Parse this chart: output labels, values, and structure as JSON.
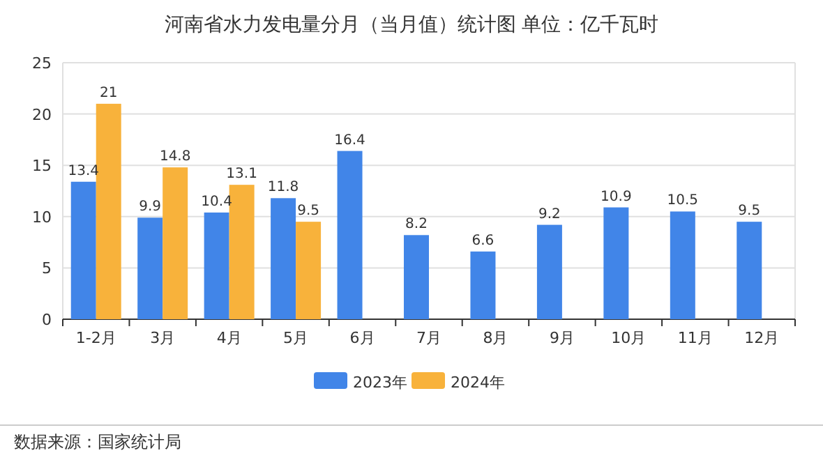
{
  "chart_data": {
    "type": "bar",
    "title": "河南省水力发电量分月（当月值）统计图 单位：亿千瓦时",
    "categories": [
      "1-2月",
      "3月",
      "4月",
      "5月",
      "6月",
      "7月",
      "8月",
      "9月",
      "10月",
      "11月",
      "12月"
    ],
    "series": [
      {
        "name": "2023年",
        "color": "#4185e8",
        "values": [
          13.4,
          9.9,
          10.4,
          11.8,
          16.4,
          8.2,
          6.6,
          9.2,
          10.9,
          10.5,
          9.5
        ]
      },
      {
        "name": "2024年",
        "color": "#f8b23b",
        "values": [
          21,
          14.8,
          13.1,
          9.5,
          null,
          null,
          null,
          null,
          null,
          null,
          null
        ]
      }
    ],
    "ylim": [
      0,
      25
    ],
    "yticks": [
      0,
      5,
      10,
      15,
      20,
      25
    ],
    "grid": "y",
    "legend": "bottom",
    "data_labels": true,
    "annotations": [
      "数据来源：国家统计局"
    ]
  }
}
